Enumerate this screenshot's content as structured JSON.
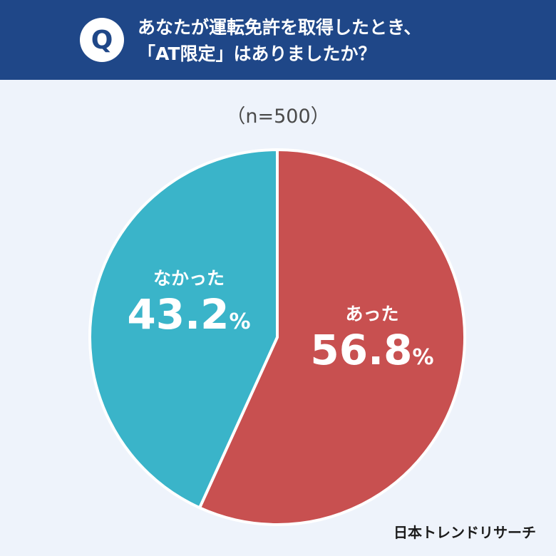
{
  "header": {
    "badge": "Q",
    "question_line1": "あなたが運転免許を取得したとき、",
    "question_line2": "「AT限定」はありましたか？"
  },
  "sample_size": "（n=500）",
  "chart_data": {
    "type": "pie",
    "slices": [
      {
        "label": "あった",
        "value": 56.8,
        "value_text": "56.8",
        "color": "#c85050"
      },
      {
        "label": "なかった",
        "value": 43.2,
        "value_text": "43.2",
        "color": "#3ab4c9"
      }
    ],
    "unit": "%",
    "start_angle_deg": 0,
    "direction": "clockwise"
  },
  "footer": {
    "brand": "日本トレンドリサーチ"
  }
}
